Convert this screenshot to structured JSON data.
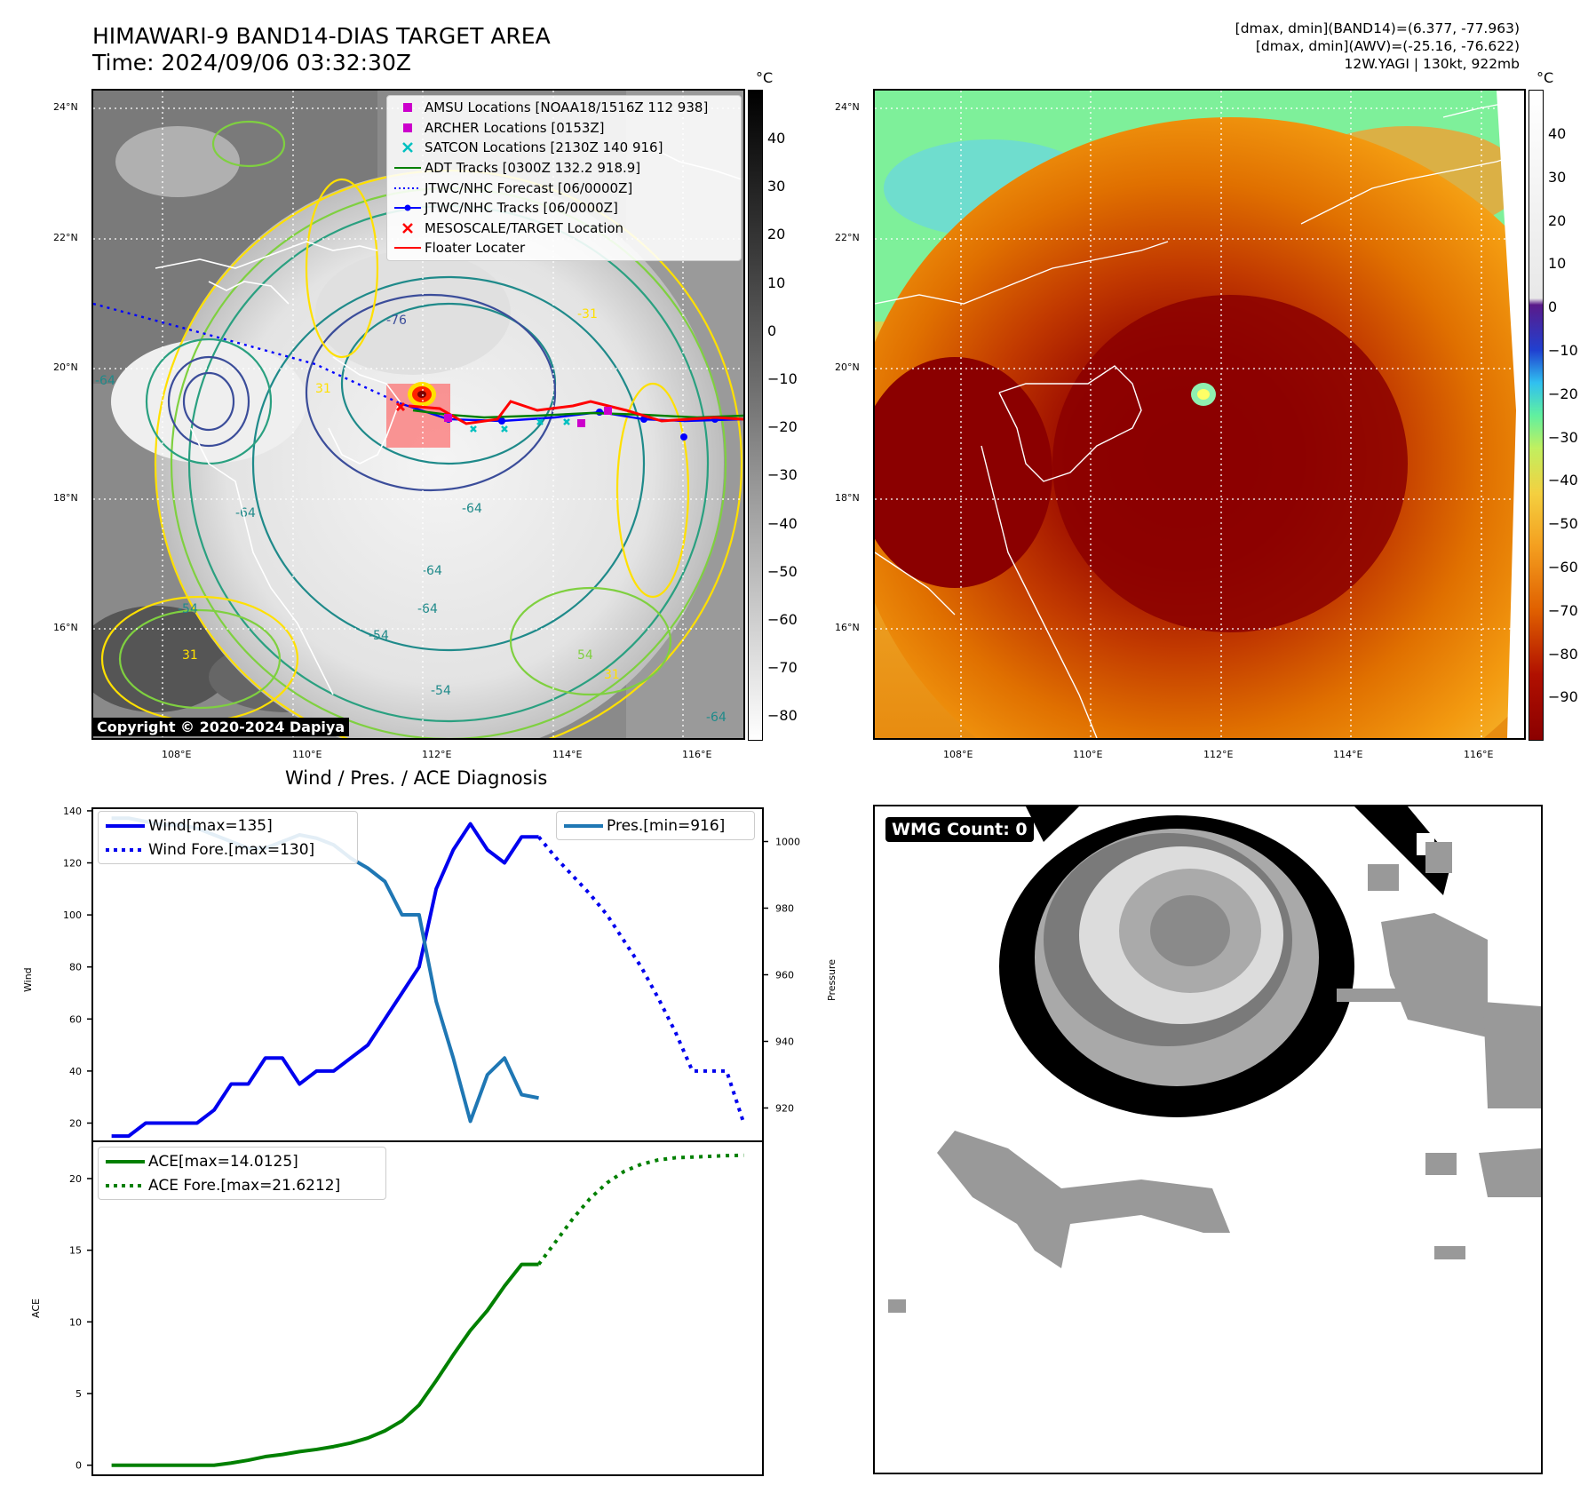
{
  "header": {
    "title_line1": "HIMAWARI-9 BAND14-DIAS TARGET AREA",
    "title_line2": "Time: 2024/09/06 03:32:30Z",
    "stats_line1": "[dmax, dmin](BAND14)=(6.377, -77.963)",
    "stats_line2": "[dmax, dmin](AWV)=(-25.16, -76.622)",
    "stats_line3": "12W.YAGI | 130kt, 922mb"
  },
  "map": {
    "lat_labels": [
      "24°N",
      "22°N",
      "20°N",
      "18°N",
      "16°N"
    ],
    "lon_labels": [
      "108°E",
      "110°E",
      "112°E",
      "114°E",
      "116°E"
    ],
    "colorbar_unit": "°C",
    "left_colorbar_ticks": [
      "40",
      "30",
      "20",
      "10",
      "0",
      "−10",
      "−20",
      "−30",
      "−40",
      "−50",
      "−60",
      "−70",
      "−80"
    ],
    "right_colorbar_ticks": [
      "40",
      "30",
      "20",
      "10",
      "0",
      "−10",
      "−20",
      "−30",
      "−40",
      "−50",
      "−60",
      "−70",
      "−80",
      "−90"
    ],
    "copyright": "Copyright © 2020-2024 Dapiya",
    "contour_labels": [
      "-76",
      "-31",
      "-64",
      "-64",
      "-64",
      "-64",
      "-54",
      "-54",
      "-64",
      "-54",
      "31",
      "31",
      "54",
      "31",
      "-64"
    ],
    "legend": [
      {
        "label": "AMSU Locations [NOAA18/1516Z 112 938]",
        "marker": "square",
        "color": "#cc00cc"
      },
      {
        "label": "ARCHER Locations [0153Z]",
        "marker": "square",
        "color": "#cc00cc"
      },
      {
        "label": "SATCON Locations [2130Z 140 916]",
        "marker": "x",
        "color": "#00c0c0"
      },
      {
        "label": "ADT Tracks [0300Z 132.2 918.9]",
        "marker": "line",
        "color": "#008000"
      },
      {
        "label": "JTWC/NHC Forecast [06/0000Z]",
        "marker": "dotted",
        "color": "#0000ff"
      },
      {
        "label": "JTWC/NHC Tracks [06/0000Z]",
        "marker": "line-dot",
        "color": "#0000ff"
      },
      {
        "label": "MESOSCALE/TARGET Location",
        "marker": "x",
        "color": "#ff0000"
      },
      {
        "label": "Floater Locater",
        "marker": "line",
        "color": "#ff0000"
      }
    ]
  },
  "diag": {
    "title": "Wind / Pres. / ACE Diagnosis",
    "wind_ylabel": "Wind",
    "pres_ylabel": "Pressure",
    "ace_ylabel": "ACE",
    "wmg": "WMG Count: 0"
  },
  "chart_data": [
    {
      "type": "line",
      "title": "Wind / Pres. / ACE Diagnosis",
      "ylabel": "Wind",
      "ylim": [
        13,
        141
      ],
      "yticks": [
        20,
        40,
        60,
        80,
        100,
        120,
        140
      ],
      "series": [
        {
          "name": "Wind[max=135]",
          "style": "solid",
          "color": "#0000ee",
          "axis": "left",
          "x": [
            0,
            1,
            2,
            3,
            4,
            5,
            6,
            7,
            8,
            9,
            10,
            11,
            12,
            13,
            14,
            15,
            16,
            17,
            18,
            19,
            20,
            21,
            22,
            23,
            24,
            25
          ],
          "y": [
            15,
            15,
            20,
            20,
            20,
            20,
            25,
            35,
            35,
            45,
            45,
            35,
            40,
            40,
            45,
            50,
            60,
            70,
            80,
            110,
            125,
            135,
            125,
            120,
            130,
            130
          ]
        },
        {
          "name": "Wind Fore.[max=130]",
          "style": "dotted",
          "color": "#0000ee",
          "axis": "left",
          "x": [
            25,
            26,
            27,
            28,
            29,
            30,
            31,
            32,
            33,
            34,
            35,
            36,
            37
          ],
          "y": [
            130,
            122,
            115,
            108,
            100,
            90,
            80,
            68,
            55,
            40,
            40,
            40,
            20
          ]
        },
        {
          "name": "Pres.[min=916]",
          "style": "solid",
          "color": "#1f77b4",
          "axis": "right",
          "ylim": [
            910,
            1010
          ],
          "yticks": [
            920,
            940,
            960,
            980,
            1000
          ],
          "x": [
            0,
            1,
            2,
            3,
            4,
            5,
            6,
            7,
            8,
            9,
            10,
            11,
            12,
            13,
            14,
            15,
            16,
            17,
            18,
            19,
            20,
            21,
            22,
            23,
            24,
            25
          ],
          "y": [
            1007,
            1007,
            1006,
            1005,
            1005,
            1004,
            1002,
            1000,
            998,
            998,
            1000,
            1002,
            1001,
            999,
            995,
            992,
            988,
            978,
            978,
            952,
            935,
            916,
            930,
            935,
            924,
            923
          ]
        }
      ]
    },
    {
      "type": "line",
      "ylabel": "ACE",
      "ylim": [
        -0.7,
        22.6
      ],
      "yticks": [
        0,
        5,
        10,
        15,
        20
      ],
      "series": [
        {
          "name": "ACE[max=14.0125]",
          "style": "solid",
          "color": "#008000",
          "x": [
            0,
            1,
            2,
            3,
            4,
            5,
            6,
            7,
            8,
            9,
            10,
            11,
            12,
            13,
            14,
            15,
            16,
            17,
            18,
            19,
            20,
            21,
            22,
            23,
            24,
            25
          ],
          "y": [
            0,
            0,
            0,
            0,
            0,
            0,
            0,
            0.15,
            0.35,
            0.6,
            0.75,
            0.95,
            1.1,
            1.3,
            1.55,
            1.9,
            2.4,
            3.1,
            4.2,
            5.9,
            7.7,
            9.4,
            10.8,
            12.5,
            14.0125,
            14.0125
          ]
        },
        {
          "name": "ACE Fore.[max=21.6212]",
          "style": "dotted",
          "color": "#008000",
          "x": [
            25,
            26,
            27,
            28,
            29,
            30,
            31,
            32,
            33,
            34,
            35,
            36,
            37
          ],
          "y": [
            14.0125,
            15.6,
            17.2,
            18.6,
            19.7,
            20.5,
            21.0,
            21.3,
            21.45,
            21.5,
            21.55,
            21.6,
            21.6212
          ]
        }
      ]
    }
  ]
}
